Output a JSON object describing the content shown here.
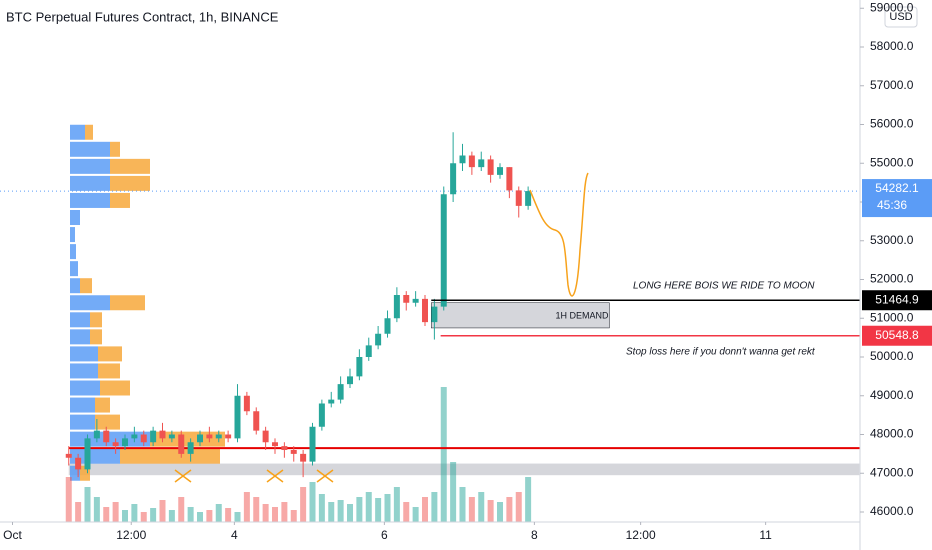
{
  "chart_data": {
    "type": "candlestick",
    "title": "BTC Perpetual Futures Contract, 1h, BINANCE",
    "currency": "USD",
    "up_color": "#26a69a",
    "down_color": "#ef5350",
    "x": [
      22,
      25,
      28,
      31,
      34,
      37,
      40,
      43,
      46,
      49,
      52,
      55,
      58,
      61,
      64,
      67,
      70,
      73,
      76,
      79,
      82,
      85,
      88,
      91,
      94,
      97,
      100,
      103,
      106,
      109,
      112,
      115,
      118,
      121,
      124,
      127,
      130,
      133,
      136,
      139,
      142,
      145,
      148,
      151,
      154,
      157,
      160,
      163,
      166,
      169
    ],
    "open": [
      47500,
      47400,
      47100,
      47900,
      48100,
      47800,
      47700,
      47900,
      48000,
      47800,
      48100,
      47900,
      48000,
      47500,
      47800,
      48000,
      47900,
      48000,
      47900,
      49000,
      48600,
      48100,
      47800,
      47700,
      47600,
      47500,
      47300,
      48200,
      48800,
      48900,
      49300,
      49500,
      50000,
      50300,
      50600,
      51000,
      51600,
      51400,
      51500,
      50900,
      51300,
      54200,
      55000,
      55200,
      54900,
      55100,
      54700,
      54900,
      54300,
      53900
    ],
    "high": [
      47700,
      47500,
      48000,
      48400,
      48200,
      47900,
      48000,
      48200,
      48100,
      48200,
      48300,
      48100,
      48100,
      47900,
      48100,
      48200,
      48100,
      48100,
      49300,
      49100,
      48700,
      48200,
      47900,
      47800,
      47700,
      47600,
      48300,
      48900,
      49100,
      49500,
      49700,
      50200,
      50500,
      50800,
      51200,
      51800,
      51700,
      51700,
      51600,
      51500,
      54400,
      55800,
      55500,
      55300,
      55300,
      55200,
      55000,
      54900,
      54400,
      54400
    ],
    "low": [
      47200,
      46900,
      47000,
      47800,
      47700,
      47500,
      47600,
      47800,
      47700,
      47700,
      47800,
      47800,
      47400,
      47300,
      47700,
      47800,
      47800,
      47800,
      47800,
      48500,
      48000,
      47600,
      47500,
      47400,
      47300,
      46900,
      47200,
      48100,
      48700,
      48800,
      49200,
      49400,
      49900,
      50200,
      50500,
      50900,
      51200,
      51300,
      50800,
      50450,
      51200,
      54000,
      54800,
      54700,
      54800,
      54500,
      54600,
      54100,
      53600,
      53800
    ],
    "close": [
      47400,
      47100,
      47900,
      48100,
      47800,
      47700,
      47900,
      48000,
      47800,
      48100,
      47900,
      48000,
      47500,
      47800,
      48000,
      47900,
      48000,
      47900,
      49000,
      48600,
      48100,
      47800,
      47700,
      47600,
      47500,
      47300,
      48200,
      48800,
      48900,
      49300,
      49500,
      50000,
      50300,
      50600,
      51000,
      51600,
      51400,
      51500,
      50900,
      51300,
      54200,
      55000,
      55200,
      54900,
      55100,
      54700,
      54900,
      54300,
      53900,
      54282.1
    ],
    "volume": [
      45,
      20,
      35,
      25,
      15,
      20,
      12,
      18,
      10,
      14,
      22,
      12,
      25,
      15,
      10,
      12,
      18,
      14,
      10,
      30,
      25,
      18,
      15,
      20,
      12,
      35,
      40,
      28,
      20,
      22,
      18,
      25,
      30,
      24,
      28,
      35,
      20,
      15,
      25,
      30,
      135,
      60,
      35,
      25,
      30,
      22,
      20,
      25,
      30,
      45
    ],
    "volume_profile": {
      "prices": [
        47000,
        47440,
        47880,
        48320,
        48760,
        49200,
        49640,
        50080,
        50520,
        50960,
        51400,
        51840,
        52280,
        52720,
        53160,
        53600,
        54040,
        54480,
        54920,
        55360,
        55800
      ],
      "up": [
        10,
        50,
        80,
        25,
        25,
        30,
        28,
        28,
        20,
        20,
        40,
        10,
        8,
        6,
        5,
        10,
        40,
        40,
        40,
        40,
        15
      ],
      "down": [
        10,
        100,
        75,
        25,
        15,
        30,
        22,
        24,
        12,
        12,
        35,
        12,
        0,
        0,
        0,
        0,
        20,
        40,
        40,
        10,
        8
      ],
      "up_color": "#5b9cf6",
      "down_color": "#f7a83b"
    },
    "levels": [
      {
        "value": 51464.9,
        "start": 138,
        "color": "#000000"
      },
      {
        "value": 50548.8,
        "start": 141,
        "color": "#f23645"
      }
    ],
    "lines": [
      {
        "value": 47650,
        "start": 22,
        "color": "#e60000"
      }
    ],
    "zones": [
      {
        "low": 50750,
        "high": 51400,
        "start": 138,
        "end": 195
      },
      {
        "low": 46950,
        "high": 47250,
        "start": 22,
        "end": 275
      }
    ],
    "last_price": {
      "value": 54282.1,
      "countdown": "45:36",
      "color": "#5b9cf6"
    },
    "annotations": [
      "LONG HERE BOIS WE RIDE TO MOON",
      "Stop loss here if you donn't wanna get rekt",
      "1H DEMAND"
    ],
    "xlim": [
      0,
      275.2
    ],
    "xticks": [
      {
        "value": 4,
        "label": "Oct"
      },
      {
        "value": 42,
        "label": "12:00"
      },
      {
        "value": 75,
        "label": "4"
      },
      {
        "value": 123,
        "label": "6"
      },
      {
        "value": 171,
        "label": "8"
      },
      {
        "value": 205,
        "label": "12:00"
      },
      {
        "value": 245,
        "label": "11"
      }
    ],
    "ylim": [
      45742,
      59213
    ],
    "yticks": [
      {
        "value": 46000,
        "label": "46000.0"
      },
      {
        "value": 47000,
        "label": "47000.0"
      },
      {
        "value": 48000,
        "label": "48000.0"
      },
      {
        "value": 49000,
        "label": "49000.0"
      },
      {
        "value": 50000,
        "label": "50000.0"
      },
      {
        "value": 51000,
        "label": "51000.0"
      },
      {
        "value": 52000,
        "label": "52000.0"
      },
      {
        "value": 53000,
        "label": "53000.0"
      },
      {
        "value": 54000,
        "label": "54000.0"
      },
      {
        "value": 55000,
        "label": "55000.0"
      },
      {
        "value": 56000,
        "label": "56000.0"
      },
      {
        "value": 57000,
        "label": "57000.0"
      },
      {
        "value": 58000,
        "label": "58000.0"
      },
      {
        "value": 59000,
        "label": "59000.0"
      }
    ]
  }
}
